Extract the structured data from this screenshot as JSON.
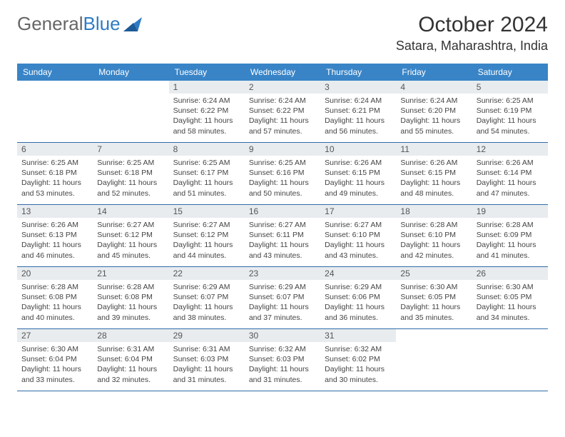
{
  "logo": {
    "text_gray": "General",
    "text_blue": "Blue"
  },
  "header": {
    "month_title": "October 2024",
    "location": "Satara, Maharashtra, India"
  },
  "calendar": {
    "day_names": [
      "Sunday",
      "Monday",
      "Tuesday",
      "Wednesday",
      "Thursday",
      "Friday",
      "Saturday"
    ],
    "header_bg": "#3884c7",
    "header_fg": "#ffffff",
    "daynum_bg": "#e8ecef",
    "rule_color": "#2f6ca8",
    "cells": [
      {
        "day": "",
        "sunrise": "",
        "sunset": "",
        "daylight": ""
      },
      {
        "day": "",
        "sunrise": "",
        "sunset": "",
        "daylight": ""
      },
      {
        "day": "1",
        "sunrise": "Sunrise: 6:24 AM",
        "sunset": "Sunset: 6:22 PM",
        "daylight": "Daylight: 11 hours and 58 minutes."
      },
      {
        "day": "2",
        "sunrise": "Sunrise: 6:24 AM",
        "sunset": "Sunset: 6:22 PM",
        "daylight": "Daylight: 11 hours and 57 minutes."
      },
      {
        "day": "3",
        "sunrise": "Sunrise: 6:24 AM",
        "sunset": "Sunset: 6:21 PM",
        "daylight": "Daylight: 11 hours and 56 minutes."
      },
      {
        "day": "4",
        "sunrise": "Sunrise: 6:24 AM",
        "sunset": "Sunset: 6:20 PM",
        "daylight": "Daylight: 11 hours and 55 minutes."
      },
      {
        "day": "5",
        "sunrise": "Sunrise: 6:25 AM",
        "sunset": "Sunset: 6:19 PM",
        "daylight": "Daylight: 11 hours and 54 minutes."
      },
      {
        "day": "6",
        "sunrise": "Sunrise: 6:25 AM",
        "sunset": "Sunset: 6:18 PM",
        "daylight": "Daylight: 11 hours and 53 minutes."
      },
      {
        "day": "7",
        "sunrise": "Sunrise: 6:25 AM",
        "sunset": "Sunset: 6:18 PM",
        "daylight": "Daylight: 11 hours and 52 minutes."
      },
      {
        "day": "8",
        "sunrise": "Sunrise: 6:25 AM",
        "sunset": "Sunset: 6:17 PM",
        "daylight": "Daylight: 11 hours and 51 minutes."
      },
      {
        "day": "9",
        "sunrise": "Sunrise: 6:25 AM",
        "sunset": "Sunset: 6:16 PM",
        "daylight": "Daylight: 11 hours and 50 minutes."
      },
      {
        "day": "10",
        "sunrise": "Sunrise: 6:26 AM",
        "sunset": "Sunset: 6:15 PM",
        "daylight": "Daylight: 11 hours and 49 minutes."
      },
      {
        "day": "11",
        "sunrise": "Sunrise: 6:26 AM",
        "sunset": "Sunset: 6:15 PM",
        "daylight": "Daylight: 11 hours and 48 minutes."
      },
      {
        "day": "12",
        "sunrise": "Sunrise: 6:26 AM",
        "sunset": "Sunset: 6:14 PM",
        "daylight": "Daylight: 11 hours and 47 minutes."
      },
      {
        "day": "13",
        "sunrise": "Sunrise: 6:26 AM",
        "sunset": "Sunset: 6:13 PM",
        "daylight": "Daylight: 11 hours and 46 minutes."
      },
      {
        "day": "14",
        "sunrise": "Sunrise: 6:27 AM",
        "sunset": "Sunset: 6:12 PM",
        "daylight": "Daylight: 11 hours and 45 minutes."
      },
      {
        "day": "15",
        "sunrise": "Sunrise: 6:27 AM",
        "sunset": "Sunset: 6:12 PM",
        "daylight": "Daylight: 11 hours and 44 minutes."
      },
      {
        "day": "16",
        "sunrise": "Sunrise: 6:27 AM",
        "sunset": "Sunset: 6:11 PM",
        "daylight": "Daylight: 11 hours and 43 minutes."
      },
      {
        "day": "17",
        "sunrise": "Sunrise: 6:27 AM",
        "sunset": "Sunset: 6:10 PM",
        "daylight": "Daylight: 11 hours and 43 minutes."
      },
      {
        "day": "18",
        "sunrise": "Sunrise: 6:28 AM",
        "sunset": "Sunset: 6:10 PM",
        "daylight": "Daylight: 11 hours and 42 minutes."
      },
      {
        "day": "19",
        "sunrise": "Sunrise: 6:28 AM",
        "sunset": "Sunset: 6:09 PM",
        "daylight": "Daylight: 11 hours and 41 minutes."
      },
      {
        "day": "20",
        "sunrise": "Sunrise: 6:28 AM",
        "sunset": "Sunset: 6:08 PM",
        "daylight": "Daylight: 11 hours and 40 minutes."
      },
      {
        "day": "21",
        "sunrise": "Sunrise: 6:28 AM",
        "sunset": "Sunset: 6:08 PM",
        "daylight": "Daylight: 11 hours and 39 minutes."
      },
      {
        "day": "22",
        "sunrise": "Sunrise: 6:29 AM",
        "sunset": "Sunset: 6:07 PM",
        "daylight": "Daylight: 11 hours and 38 minutes."
      },
      {
        "day": "23",
        "sunrise": "Sunrise: 6:29 AM",
        "sunset": "Sunset: 6:07 PM",
        "daylight": "Daylight: 11 hours and 37 minutes."
      },
      {
        "day": "24",
        "sunrise": "Sunrise: 6:29 AM",
        "sunset": "Sunset: 6:06 PM",
        "daylight": "Daylight: 11 hours and 36 minutes."
      },
      {
        "day": "25",
        "sunrise": "Sunrise: 6:30 AM",
        "sunset": "Sunset: 6:05 PM",
        "daylight": "Daylight: 11 hours and 35 minutes."
      },
      {
        "day": "26",
        "sunrise": "Sunrise: 6:30 AM",
        "sunset": "Sunset: 6:05 PM",
        "daylight": "Daylight: 11 hours and 34 minutes."
      },
      {
        "day": "27",
        "sunrise": "Sunrise: 6:30 AM",
        "sunset": "Sunset: 6:04 PM",
        "daylight": "Daylight: 11 hours and 33 minutes."
      },
      {
        "day": "28",
        "sunrise": "Sunrise: 6:31 AM",
        "sunset": "Sunset: 6:04 PM",
        "daylight": "Daylight: 11 hours and 32 minutes."
      },
      {
        "day": "29",
        "sunrise": "Sunrise: 6:31 AM",
        "sunset": "Sunset: 6:03 PM",
        "daylight": "Daylight: 11 hours and 31 minutes."
      },
      {
        "day": "30",
        "sunrise": "Sunrise: 6:32 AM",
        "sunset": "Sunset: 6:03 PM",
        "daylight": "Daylight: 11 hours and 31 minutes."
      },
      {
        "day": "31",
        "sunrise": "Sunrise: 6:32 AM",
        "sunset": "Sunset: 6:02 PM",
        "daylight": "Daylight: 11 hours and 30 minutes."
      },
      {
        "day": "",
        "sunrise": "",
        "sunset": "",
        "daylight": ""
      },
      {
        "day": "",
        "sunrise": "",
        "sunset": "",
        "daylight": ""
      }
    ]
  }
}
